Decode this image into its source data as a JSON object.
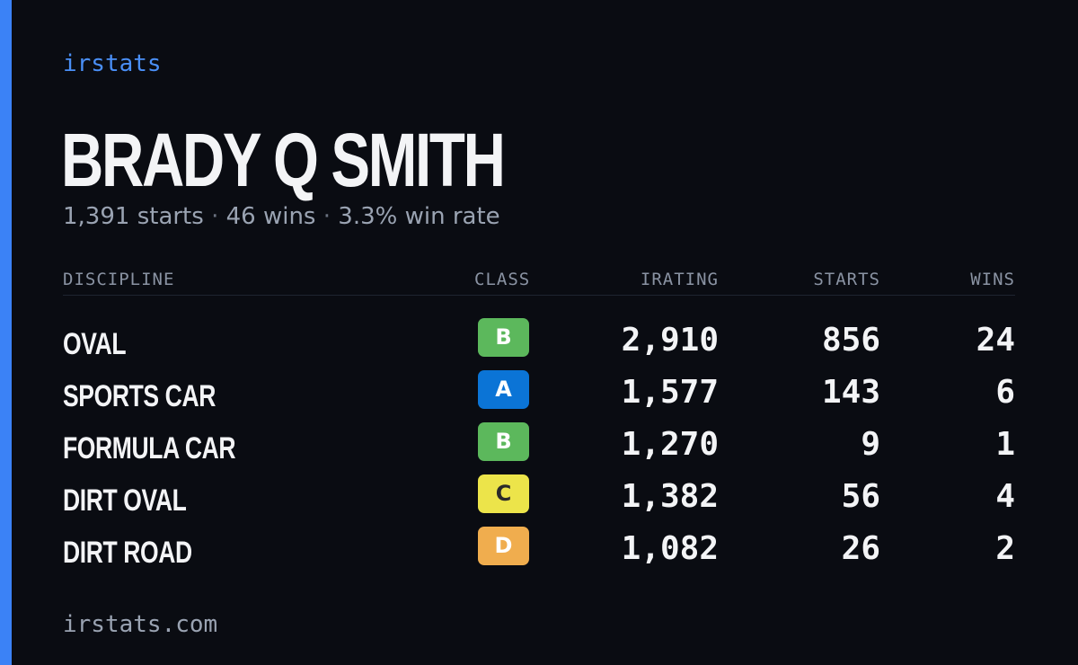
{
  "brand": "irstats",
  "player": {
    "name": "BRADY Q SMITH"
  },
  "summary": {
    "starts": "1,391 starts",
    "wins": "46 wins",
    "win_rate": "3.3% win rate",
    "separator": "·"
  },
  "table": {
    "headers": {
      "discipline": "DISCIPLINE",
      "class": "CLASS",
      "irating": "IRATING",
      "starts": "STARTS",
      "wins": "WINS"
    },
    "rows": [
      {
        "discipline": "OVAL",
        "class": "B",
        "class_color": "#5cb85c",
        "class_text_color": "#ffffff",
        "irating": "2,910",
        "starts": "856",
        "wins": "24"
      },
      {
        "discipline": "SPORTS CAR",
        "class": "A",
        "class_color": "#0b74d6",
        "class_text_color": "#ffffff",
        "irating": "1,577",
        "starts": "143",
        "wins": "6"
      },
      {
        "discipline": "FORMULA CAR",
        "class": "B",
        "class_color": "#5cb85c",
        "class_text_color": "#ffffff",
        "irating": "1,270",
        "starts": "9",
        "wins": "1"
      },
      {
        "discipline": "DIRT OVAL",
        "class": "C",
        "class_color": "#ece44a",
        "class_text_color": "#2a2a2a",
        "irating": "1,382",
        "starts": "56",
        "wins": "4"
      },
      {
        "discipline": "DIRT ROAD",
        "class": "D",
        "class_color": "#f0ad4e",
        "class_text_color": "#ffffff",
        "irating": "1,082",
        "starts": "26",
        "wins": "2"
      }
    ]
  },
  "footer": "irstats.com",
  "colors": {
    "accent": "#3b82f6",
    "background": "#0a0c12"
  }
}
